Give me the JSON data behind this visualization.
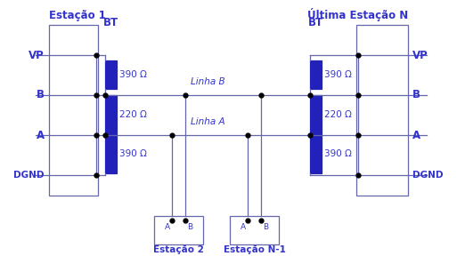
{
  "bg_color": "#ffffff",
  "line_color": "#6666aa",
  "resistor_color": "#2222bb",
  "text_color": "#3333cc",
  "dot_color": "#000000",
  "resistor_values": [
    "390 Ω",
    "220 Ω",
    "390 Ω"
  ],
  "linha_b_label": "Linha B",
  "linha_a_label": "Linha A",
  "estacao1_label": "Estação 1",
  "estacao_n_label": "Última Estação N",
  "estacao2_label": "Estação 2",
  "estacao_n1_label": "Estação N-1",
  "bt_label": "BT",
  "font_size_main": 8.5,
  "font_size_small": 7.5,
  "font_size_label": 7.5,
  "font_size_res": 7.5
}
